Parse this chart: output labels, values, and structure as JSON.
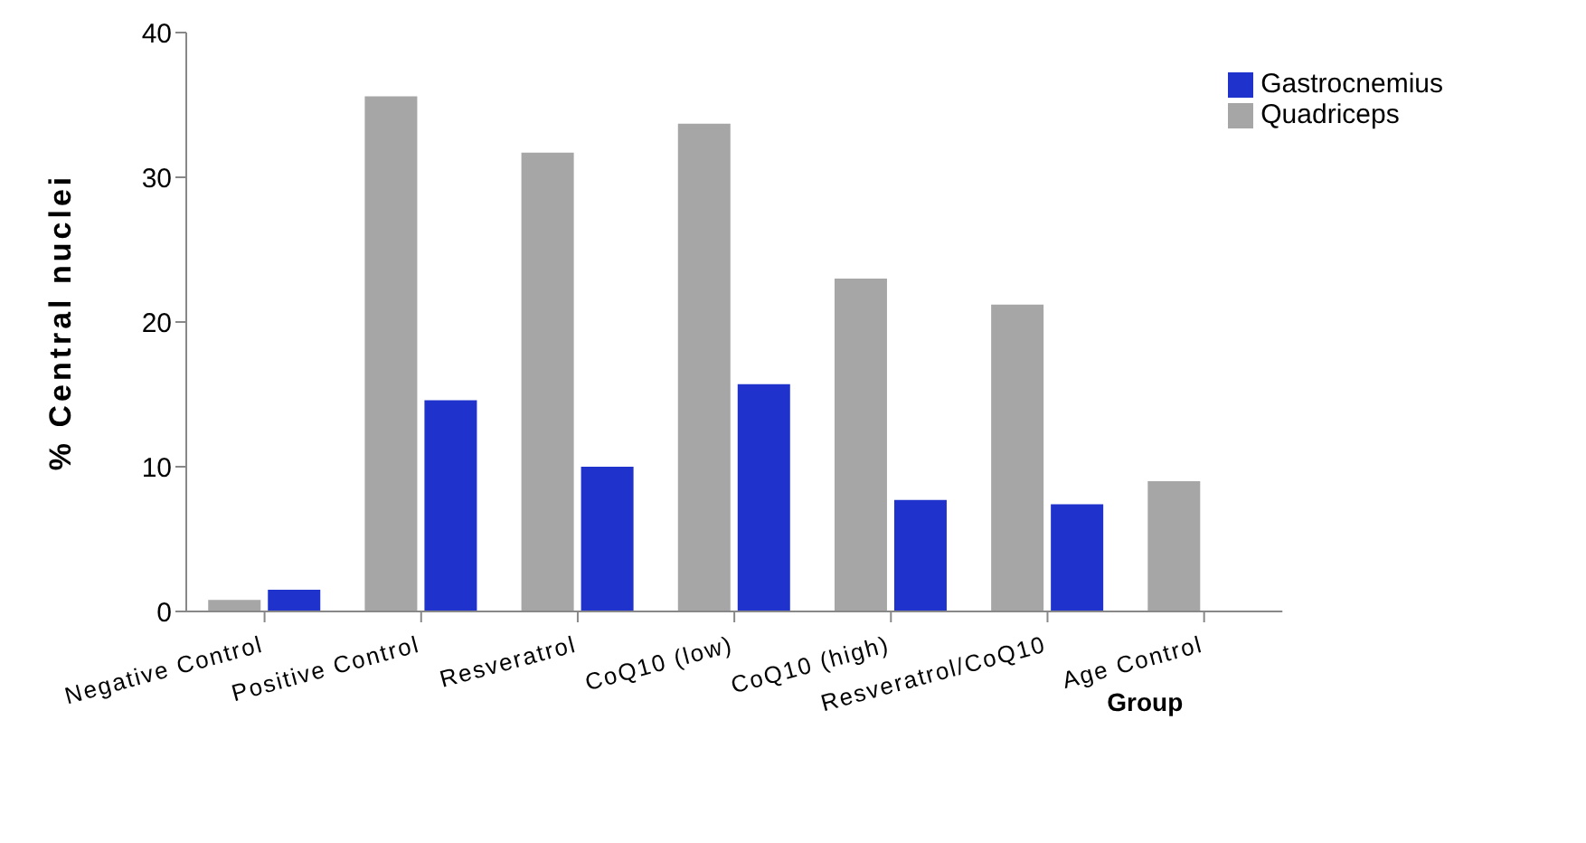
{
  "chart_data": {
    "type": "bar",
    "xlabel": "Group",
    "ylabel": "% Central nuclei",
    "categories": [
      "Negative Control",
      "Positive Control",
      "Resveratrol",
      "CoQ10 (low)",
      "CoQ10 (high)",
      "Resveratrol/CoQ10",
      "Age Control"
    ],
    "series": [
      {
        "name": "Quadriceps",
        "color": "#a6a6a6",
        "values": [
          0.8,
          35.6,
          31.7,
          33.7,
          23.0,
          21.2,
          9.0
        ]
      },
      {
        "name": "Gastrocnemius",
        "color": "#1f33cc",
        "values": [
          1.5,
          14.6,
          10.0,
          15.7,
          7.7,
          7.4,
          null
        ]
      }
    ],
    "ylim": [
      0,
      40
    ],
    "yticks": [
      0,
      10,
      20,
      30,
      40
    ],
    "legend": "top right"
  }
}
